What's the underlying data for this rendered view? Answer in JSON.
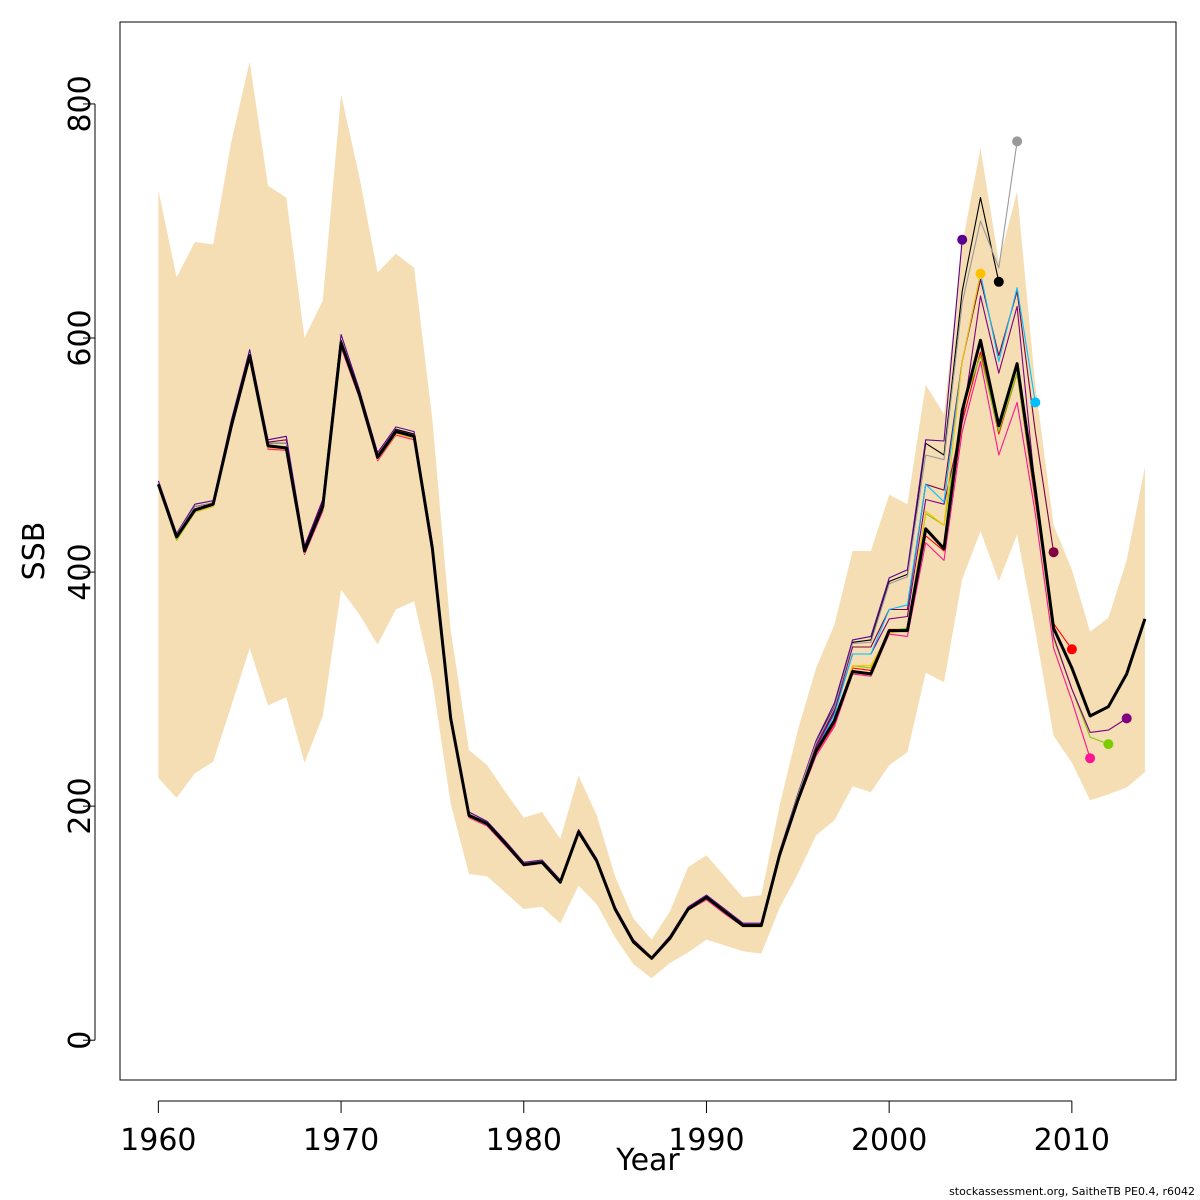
{
  "chart_data": {
    "type": "line",
    "xlabel": "Year",
    "ylabel": "SSB",
    "xlim": [
      1957.9,
      2015.7
    ],
    "ylim": [
      -34,
      870
    ],
    "x_ticks": [
      1960,
      1970,
      1980,
      1990,
      2000,
      2010
    ],
    "y_ticks": [
      0,
      200,
      400,
      600,
      800
    ],
    "credit": "stockassessment.org, SaitheTB  PE0.4, r6042",
    "grid": false,
    "legend": "none",
    "band_color": "#F5DEB3",
    "band": {
      "x": [
        1960,
        1961,
        1962,
        1963,
        1964,
        1965,
        1966,
        1967,
        1968,
        1969,
        1970,
        1971,
        1972,
        1973,
        1974,
        1975,
        1976,
        1977,
        1978,
        1979,
        1980,
        1981,
        1982,
        1983,
        1984,
        1985,
        1986,
        1987,
        1988,
        1989,
        1990,
        1991,
        1992,
        1993,
        1994,
        1995,
        1996,
        1997,
        1998,
        1999,
        2000,
        2001,
        2002,
        2003,
        2004,
        2005,
        2006,
        2007,
        2008,
        2009,
        2010,
        2011,
        2012,
        2013,
        2014
      ],
      "upper": [
        726,
        652,
        682,
        680,
        768,
        836,
        730,
        720,
        600,
        632,
        808,
        738,
        656,
        672,
        660,
        530,
        350,
        248,
        235,
        212,
        190,
        195,
        172,
        226,
        192,
        140,
        104,
        86,
        110,
        148,
        158,
        140,
        122,
        124,
        200,
        265,
        318,
        355,
        418,
        418,
        466,
        458,
        560,
        535,
        680,
        762,
        665,
        725,
        560,
        440,
        402,
        349,
        361,
        410,
        490
      ],
      "lower": [
        224,
        207,
        228,
        238,
        286,
        335,
        286,
        293,
        237,
        277,
        385,
        364,
        338,
        368,
        375,
        307,
        202,
        142,
        140,
        126,
        112,
        114,
        100,
        132,
        116,
        88,
        65,
        53,
        66,
        75,
        86,
        81,
        76,
        74,
        113,
        142,
        175,
        188,
        217,
        212,
        235,
        246,
        314,
        306,
        394,
        435,
        392,
        432,
        350,
        260,
        237,
        205,
        210,
        216,
        229
      ]
    },
    "series": [
      {
        "color": "#000000",
        "values": [
          475,
          430,
          453,
          458,
          525,
          585,
          508,
          506,
          418,
          456,
          596,
          552,
          498,
          520,
          516,
          420,
          275,
          192,
          185,
          168,
          150,
          152,
          135,
          178,
          153,
          112,
          84,
          70,
          87,
          112,
          122,
          110,
          98,
          98,
          158,
          205,
          247,
          273,
          315,
          313,
          350,
          350,
          437,
          420,
          538,
          598,
          525,
          578,
          470,
          352,
          318,
          277,
          285,
          313,
          360
        ]
      },
      {
        "color": "#000000",
        "values": [
          475,
          430,
          453,
          458,
          525,
          585,
          508,
          506,
          418,
          456,
          596,
          552,
          498,
          520,
          516,
          420,
          275,
          192,
          185,
          168,
          150,
          152,
          135,
          178,
          153,
          112,
          84,
          70,
          87,
          112,
          122,
          110,
          98,
          98,
          158,
          205,
          247,
          273,
          315,
          313,
          350,
          350,
          437,
          420,
          538,
          598,
          525,
          578,
          470,
          352,
          318,
          277,
          285,
          313,
          360
        ],
        "x_start": 1960
      },
      {
        "color": "#FF0000",
        "values": [
          475,
          430,
          453,
          458,
          525,
          585,
          508,
          506,
          418,
          456,
          596,
          552,
          498,
          520,
          516,
          420,
          275,
          192,
          185,
          168,
          150,
          152,
          135,
          178,
          153,
          112,
          84,
          70,
          87,
          112,
          122,
          110,
          98,
          98,
          158,
          205,
          245,
          270,
          318,
          316,
          351,
          351,
          431,
          418,
          528,
          588,
          518,
          570,
          460,
          356,
          334
        ]
      },
      {
        "color": "#FF1493",
        "values": [
          473,
          428,
          452,
          457,
          522,
          582,
          505,
          504,
          415,
          452,
          592,
          549,
          495,
          517,
          513,
          417,
          272,
          190,
          183,
          166,
          149,
          151,
          134,
          177,
          152,
          111,
          83,
          69,
          86,
          111,
          120,
          108,
          97,
          97,
          156,
          203,
          243,
          268,
          313,
          311,
          347,
          345,
          425,
          410,
          520,
          580,
          500,
          545,
          450,
          335,
          290,
          241
        ]
      },
      {
        "color": "#7CCD00",
        "values": [
          474,
          427,
          451,
          456,
          523,
          584,
          507,
          505,
          417,
          455,
          595,
          551,
          497,
          519,
          515,
          419,
          274,
          191,
          184,
          167,
          150,
          151,
          134,
          178,
          152,
          111,
          83,
          69,
          86,
          111,
          121,
          109,
          97,
          97,
          157,
          203,
          246,
          272,
          320,
          318,
          350,
          352,
          450,
          440,
          540,
          585,
          520,
          570,
          463,
          343,
          300,
          259,
          253
        ]
      },
      {
        "color": "#800080",
        "values": [
          476,
          431,
          454,
          459,
          526,
          586,
          506,
          507,
          416,
          457,
          597,
          553,
          499,
          521,
          517,
          421,
          276,
          193,
          186,
          169,
          151,
          153,
          136,
          179,
          154,
          113,
          85,
          70,
          88,
          113,
          123,
          111,
          99,
          99,
          160,
          208,
          250,
          280,
          330,
          330,
          360,
          362,
          462,
          458,
          528,
          636,
          570,
          627,
          470,
          345,
          300,
          263,
          265,
          275
        ]
      },
      {
        "color": "#800040",
        "values": [
          476,
          432,
          456,
          459,
          527,
          587,
          511,
          513,
          422,
          460,
          598,
          553,
          500,
          522,
          518,
          423,
          276,
          193,
          186,
          169,
          151,
          153,
          136,
          179,
          154,
          112,
          85,
          70,
          88,
          112,
          122,
          110,
          98,
          98,
          158,
          207,
          252,
          282,
          336,
          336,
          368,
          368,
          475,
          470,
          580,
          650,
          585,
          640,
          520,
          417
        ]
      },
      {
        "color": "#00BFFF",
        "values": [
          475,
          429,
          452,
          457,
          524,
          585,
          508,
          506,
          417,
          455,
          595,
          551,
          497,
          520,
          515,
          420,
          274,
          192,
          185,
          167,
          150,
          152,
          135,
          178,
          153,
          112,
          84,
          70,
          87,
          112,
          122,
          110,
          98,
          98,
          158,
          206,
          248,
          278,
          330,
          330,
          368,
          372,
          475,
          460,
          580,
          655,
          580,
          643,
          545
        ]
      },
      {
        "color": "#000000",
        "values": [
          476,
          432,
          456,
          459,
          527,
          588,
          510,
          510,
          420,
          458,
          598,
          553,
          499,
          522,
          518,
          422,
          276,
          193,
          186,
          169,
          151,
          153,
          136,
          179,
          154,
          113,
          85,
          70,
          88,
          113,
          123,
          111,
          99,
          99,
          160,
          210,
          255,
          285,
          340,
          342,
          392,
          398,
          510,
          500,
          640,
          720,
          648
        ]
      },
      {
        "color": "#FFC000",
        "values": [
          474,
          428,
          451,
          456,
          524,
          584,
          506,
          505,
          416,
          454,
          594,
          550,
          496,
          518,
          514,
          418,
          273,
          191,
          184,
          167,
          150,
          151,
          134,
          177,
          152,
          111,
          83,
          69,
          86,
          111,
          121,
          109,
          97,
          97,
          156,
          203,
          246,
          272,
          320,
          320,
          348,
          350,
          452,
          440,
          580,
          655
        ]
      },
      {
        "color": "#5C0092",
        "values": [
          478,
          433,
          458,
          461,
          530,
          590,
          513,
          516,
          422,
          462,
          603,
          556,
          502,
          524,
          520,
          425,
          278,
          195,
          187,
          170,
          152,
          154,
          137,
          180,
          155,
          114,
          86,
          71,
          89,
          114,
          124,
          112,
          100,
          100,
          161,
          210,
          256,
          288,
          342,
          345,
          395,
          402,
          513,
          512,
          684
        ]
      },
      {
        "color": "#999999",
        "values": [
          476,
          432,
          456,
          459,
          527,
          587,
          510,
          510,
          419,
          457,
          597,
          553,
          499,
          521,
          517,
          422,
          276,
          193,
          186,
          169,
          151,
          153,
          136,
          179,
          154,
          113,
          85,
          70,
          88,
          113,
          123,
          111,
          99,
          99,
          160,
          209,
          254,
          284,
          339,
          340,
          390,
          396,
          500,
          496,
          630,
          700,
          660,
          768
        ]
      }
    ],
    "end_points": [
      {
        "x": 2004,
        "y": 684,
        "color": "#5C0092"
      },
      {
        "x": 2005,
        "y": 655,
        "color": "#FFC000"
      },
      {
        "x": 2006,
        "y": 648,
        "color": "#000000"
      },
      {
        "x": 2007,
        "y": 768,
        "color": "#999999"
      },
      {
        "x": 2008,
        "y": 545,
        "color": "#00BFFF"
      },
      {
        "x": 2009,
        "y": 417,
        "color": "#800040"
      },
      {
        "x": 2010,
        "y": 334,
        "color": "#FF0000"
      },
      {
        "x": 2011,
        "y": 241,
        "color": "#FF1493"
      },
      {
        "x": 2012,
        "y": 253,
        "color": "#7CCD00"
      },
      {
        "x": 2013,
        "y": 275,
        "color": "#800080"
      }
    ]
  }
}
